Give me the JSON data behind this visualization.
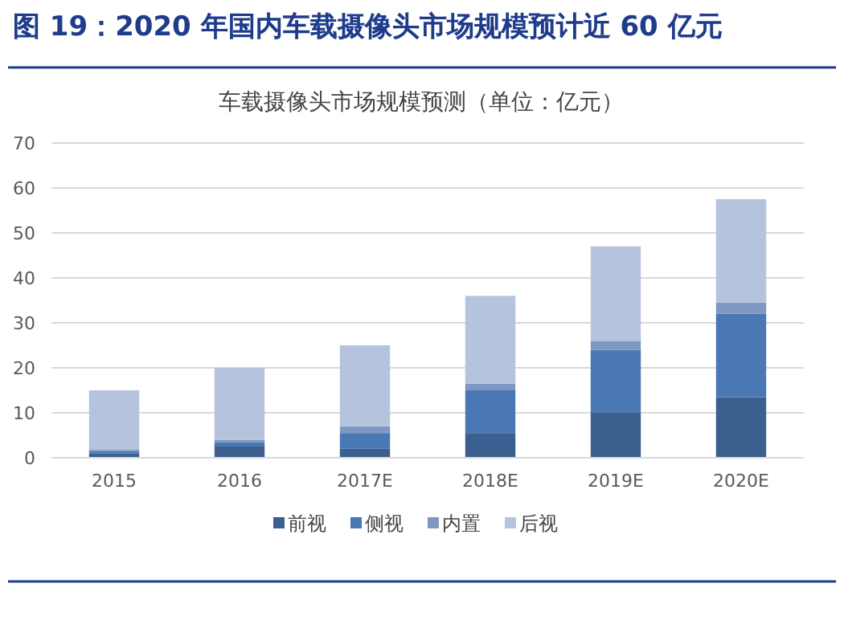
{
  "chart_data": {
    "type": "bar",
    "title": "图 19：2020 年国内车载摄像头市场规模预计近 60 亿元",
    "subtitle": "车载摄像头市场规模预测（单位：亿元）",
    "categories": [
      "2015",
      "2016",
      "2017E",
      "2018E",
      "2019E",
      "2020E"
    ],
    "series": [
      {
        "name": "前视",
        "color": "#3b5f8e",
        "values": [
          1,
          2.5,
          2,
          5.5,
          10,
          13.5
        ]
      },
      {
        "name": "侧视",
        "color": "#4a78b4",
        "values": [
          0.5,
          1,
          3.5,
          9.5,
          14,
          18.5
        ]
      },
      {
        "name": "内置",
        "color": "#7f98c2",
        "values": [
          0.3,
          0.5,
          1.5,
          1.5,
          2,
          2.5
        ]
      },
      {
        "name": "后视",
        "color": "#b5c3dc",
        "values": [
          13.2,
          16,
          18,
          19.5,
          21,
          23
        ]
      }
    ],
    "stacked": true,
    "ylim": [
      0,
      70
    ],
    "yticks": [
      0,
      10,
      20,
      30,
      40,
      50,
      60,
      70
    ],
    "grid": "y",
    "legend": "bottom"
  }
}
